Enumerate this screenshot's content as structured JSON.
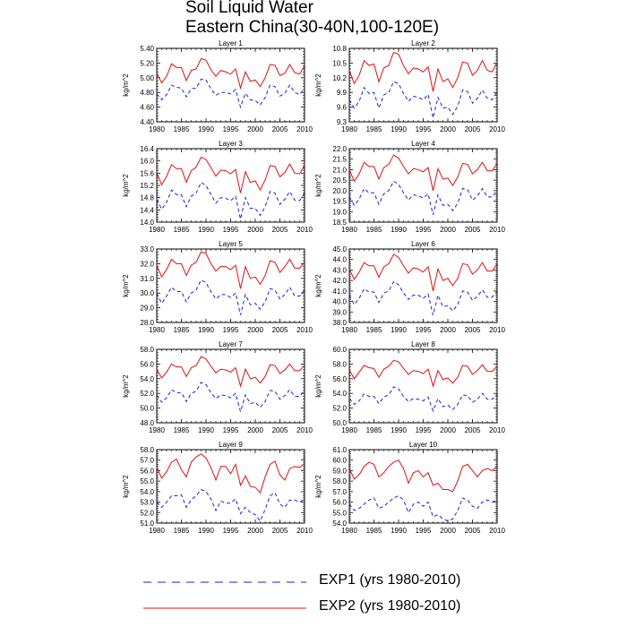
{
  "figure": {
    "title_line1": "Soil Liquid Water",
    "title_line2": "Eastern China(30-40N,100-120E)",
    "ylabel": "kg/m^2",
    "legend": [
      {
        "label": "EXP1 (yrs 1980-2010)",
        "color": "#1f1fd6",
        "style": "dashed"
      },
      {
        "label": "EXP2 (yrs 1980-2010)",
        "color": "#e01010",
        "style": "solid"
      }
    ]
  },
  "chart_data": [
    {
      "type": "line",
      "title": "Layer 1",
      "ylim": [
        4.4,
        5.4
      ],
      "yticks": [
        "4.40",
        "4.60",
        "4.80",
        "5.00",
        "5.20",
        "5.40"
      ],
      "xlim": [
        1980,
        2010
      ],
      "xticks": [
        "1980",
        "1985",
        "1990",
        "1995",
        "2000",
        "2005",
        "2010"
      ],
      "series": [
        {
          "name": "EXP1 (yrs 1980-2010)",
          "values": [
            4.78,
            4.7,
            4.77,
            4.9,
            4.87,
            4.86,
            4.74,
            4.85,
            4.86,
            4.98,
            4.97,
            4.85,
            4.76,
            4.8,
            4.8,
            4.78,
            4.84,
            4.6,
            4.79,
            4.7,
            4.69,
            4.63,
            4.73,
            4.9,
            4.88,
            4.75,
            4.79,
            4.9,
            4.8,
            4.77,
            4.86
          ]
        },
        {
          "name": "EXP2 (yrs 1980-2010)",
          "values": [
            5.06,
            4.93,
            5.02,
            5.19,
            5.14,
            5.14,
            4.96,
            5.1,
            5.12,
            5.26,
            5.24,
            5.11,
            5.02,
            5.1,
            5.08,
            5.05,
            5.12,
            4.86,
            5.08,
            4.95,
            4.97,
            4.88,
            5.0,
            5.18,
            5.17,
            5.03,
            5.06,
            5.18,
            5.07,
            5.05,
            5.16
          ]
        }
      ]
    },
    {
      "type": "line",
      "title": "Layer 2",
      "ylim": [
        9.3,
        10.8
      ],
      "yticks": [
        "9.3",
        "9.6",
        "9.9",
        "10.2",
        "10.5",
        "10.8"
      ],
      "xlim": [
        1980,
        2010
      ],
      "xticks": [
        "1980",
        "1985",
        "1990",
        "1995",
        "2000",
        "2005",
        "2010"
      ],
      "series": [
        {
          "name": "EXP1 (yrs 1980-2010)",
          "values": [
            9.75,
            9.58,
            9.72,
            10.0,
            9.88,
            9.9,
            9.58,
            9.85,
            9.9,
            10.12,
            10.08,
            9.88,
            9.72,
            9.82,
            9.8,
            9.75,
            9.86,
            9.38,
            9.8,
            9.58,
            9.6,
            9.45,
            9.62,
            9.95,
            9.92,
            9.68,
            9.78,
            9.95,
            9.78,
            9.75,
            9.92
          ]
        },
        {
          "name": "EXP2 (yrs 1980-2010)",
          "values": [
            10.35,
            10.08,
            10.25,
            10.55,
            10.45,
            10.48,
            10.12,
            10.4,
            10.45,
            10.72,
            10.68,
            10.45,
            10.28,
            10.4,
            10.38,
            10.32,
            10.42,
            9.92,
            10.38,
            10.12,
            10.18,
            10.0,
            10.2,
            10.52,
            10.5,
            10.25,
            10.35,
            10.55,
            10.35,
            10.32,
            10.52
          ]
        }
      ]
    },
    {
      "type": "line",
      "title": "Layer 3",
      "ylim": [
        14.0,
        16.4
      ],
      "yticks": [
        "14.0",
        "14.4",
        "14.8",
        "15.2",
        "15.6",
        "16.0",
        "16.4"
      ],
      "xlim": [
        1980,
        2010
      ],
      "xticks": [
        "1980",
        "1985",
        "1990",
        "1995",
        "2000",
        "2005",
        "2010"
      ],
      "series": [
        {
          "name": "EXP1 (yrs 1980-2010)",
          "values": [
            14.75,
            14.42,
            14.65,
            15.05,
            14.9,
            14.9,
            14.5,
            14.85,
            14.95,
            15.3,
            15.2,
            14.9,
            14.62,
            14.8,
            14.78,
            14.7,
            14.85,
            14.1,
            14.8,
            14.45,
            14.45,
            14.22,
            14.5,
            15.0,
            14.95,
            14.58,
            14.75,
            15.0,
            14.72,
            14.7,
            14.95
          ]
        },
        {
          "name": "EXP2 (yrs 1980-2010)",
          "values": [
            15.62,
            15.22,
            15.5,
            15.88,
            15.75,
            15.75,
            15.3,
            15.68,
            15.8,
            16.12,
            16.05,
            15.78,
            15.5,
            15.7,
            15.68,
            15.58,
            15.72,
            14.95,
            15.65,
            15.3,
            15.35,
            15.05,
            15.38,
            15.85,
            15.82,
            15.48,
            15.62,
            15.9,
            15.6,
            15.58,
            15.85
          ]
        }
      ]
    },
    {
      "type": "line",
      "title": "Layer 4",
      "ylim": [
        18.5,
        22.0
      ],
      "yticks": [
        "18.5",
        "19.0",
        "19.5",
        "20.0",
        "20.5",
        "21.0",
        "21.5",
        "22.0"
      ],
      "xlim": [
        1980,
        2010
      ],
      "xticks": [
        "1980",
        "1985",
        "1990",
        "1995",
        "2000",
        "2005",
        "2010"
      ],
      "series": [
        {
          "name": "EXP1 (yrs 1980-2010)",
          "values": [
            19.7,
            19.3,
            19.6,
            20.1,
            19.9,
            19.9,
            19.35,
            19.85,
            20.0,
            20.45,
            20.3,
            19.9,
            19.55,
            19.8,
            19.75,
            19.65,
            19.85,
            18.85,
            19.8,
            19.3,
            19.35,
            19.05,
            19.4,
            20.1,
            20.05,
            19.55,
            19.75,
            20.1,
            19.7,
            19.7,
            20.0
          ]
        },
        {
          "name": "EXP2 (yrs 1980-2010)",
          "values": [
            21.0,
            20.45,
            20.8,
            21.35,
            21.15,
            21.15,
            20.55,
            21.1,
            21.25,
            21.7,
            21.55,
            21.15,
            20.8,
            21.05,
            21.0,
            20.9,
            21.1,
            20.0,
            21.05,
            20.55,
            20.6,
            20.25,
            20.65,
            21.3,
            21.25,
            20.8,
            21.0,
            21.35,
            20.95,
            20.95,
            21.3
          ]
        }
      ]
    },
    {
      "type": "line",
      "title": "Layer 5",
      "ylim": [
        28.0,
        33.0
      ],
      "yticks": [
        "28.0",
        "29.0",
        "30.0",
        "31.0",
        "32.0",
        "33.0"
      ],
      "xlim": [
        1980,
        2010
      ],
      "xticks": [
        "1980",
        "1985",
        "1990",
        "1995",
        "2000",
        "2005",
        "2010"
      ],
      "series": [
        {
          "name": "EXP1 (yrs 1980-2010)",
          "values": [
            30.0,
            29.3,
            29.8,
            30.4,
            30.1,
            30.1,
            29.4,
            30.0,
            30.2,
            30.9,
            30.7,
            30.1,
            29.6,
            29.9,
            29.9,
            29.7,
            30.0,
            28.5,
            29.9,
            29.2,
            29.3,
            28.9,
            29.4,
            30.3,
            30.2,
            29.6,
            29.9,
            30.4,
            29.8,
            29.8,
            30.2
          ]
        },
        {
          "name": "EXP2 (yrs 1980-2010)",
          "values": [
            31.9,
            31.1,
            31.6,
            32.3,
            32.0,
            32.0,
            31.2,
            31.9,
            32.1,
            32.8,
            32.7,
            32.0,
            31.5,
            31.8,
            31.8,
            31.6,
            31.9,
            30.3,
            31.8,
            31.0,
            31.1,
            30.6,
            31.2,
            32.2,
            32.1,
            31.4,
            31.8,
            32.3,
            31.7,
            31.7,
            32.1
          ]
        }
      ]
    },
    {
      "type": "line",
      "title": "Layer 6",
      "ylim": [
        38.0,
        45.0
      ],
      "yticks": [
        "38.0",
        "39.0",
        "40.0",
        "41.0",
        "42.0",
        "43.0",
        "44.0",
        "45.0"
      ],
      "xlim": [
        1980,
        2010
      ],
      "xticks": [
        "1980",
        "1985",
        "1990",
        "1995",
        "2000",
        "2005",
        "2010"
      ],
      "series": [
        {
          "name": "EXP1 (yrs 1980-2010)",
          "values": [
            40.6,
            39.7,
            40.3,
            41.2,
            40.9,
            40.9,
            39.9,
            40.8,
            41.0,
            41.9,
            41.6,
            40.8,
            40.2,
            40.6,
            40.6,
            40.3,
            40.7,
            38.7,
            40.6,
            39.5,
            39.6,
            39.1,
            39.7,
            41.0,
            40.9,
            40.1,
            40.5,
            41.1,
            40.4,
            40.4,
            41.0
          ]
        },
        {
          "name": "EXP2 (yrs 1980-2010)",
          "values": [
            43.1,
            42.1,
            42.8,
            43.7,
            43.4,
            43.4,
            42.3,
            43.3,
            43.6,
            44.5,
            44.2,
            43.4,
            42.7,
            43.2,
            43.1,
            42.8,
            43.3,
            41.0,
            43.1,
            42.0,
            42.2,
            41.5,
            42.2,
            43.6,
            43.5,
            42.6,
            43.0,
            43.7,
            42.9,
            42.9,
            43.6
          ]
        }
      ]
    },
    {
      "type": "line",
      "title": "Layer 7",
      "ylim": [
        48.0,
        58.0
      ],
      "yticks": [
        "48.0",
        "50.0",
        "52.0",
        "54.0",
        "56.0",
        "58.0"
      ],
      "xlim": [
        1980,
        2010
      ],
      "xticks": [
        "1980",
        "1985",
        "1990",
        "1995",
        "2000",
        "2005",
        "2010"
      ],
      "series": [
        {
          "name": "EXP1 (yrs 1980-2010)",
          "values": [
            51.8,
            50.8,
            51.4,
            52.5,
            52.1,
            52.1,
            50.9,
            52.0,
            52.3,
            53.5,
            53.2,
            52.1,
            51.3,
            51.8,
            51.7,
            51.4,
            52.0,
            49.5,
            51.8,
            50.6,
            50.8,
            50.1,
            50.9,
            52.4,
            52.3,
            51.2,
            51.7,
            52.5,
            51.6,
            51.6,
            52.4
          ]
        },
        {
          "name": "EXP2 (yrs 1980-2010)",
          "values": [
            55.3,
            54.1,
            54.9,
            56.0,
            55.6,
            55.6,
            54.3,
            55.5,
            55.8,
            57.0,
            56.7,
            55.7,
            54.8,
            55.3,
            55.2,
            54.9,
            55.5,
            53.0,
            55.3,
            54.0,
            54.2,
            53.4,
            54.3,
            55.9,
            55.8,
            54.7,
            55.2,
            56.0,
            55.1,
            55.1,
            55.8
          ]
        }
      ]
    },
    {
      "type": "line",
      "title": "Layer 8",
      "ylim": [
        50.0,
        60.0
      ],
      "yticks": [
        "50.0",
        "52.0",
        "54.0",
        "56.0",
        "58.0",
        "60.0"
      ],
      "xlim": [
        1980,
        2010
      ],
      "xticks": [
        "1980",
        "1985",
        "1990",
        "1995",
        "2000",
        "2005",
        "2010"
      ],
      "series": [
        {
          "name": "EXP1 (yrs 1980-2010)",
          "values": [
            53.3,
            52.5,
            53.0,
            53.9,
            53.6,
            53.6,
            52.6,
            53.5,
            53.8,
            54.9,
            54.6,
            53.6,
            52.9,
            53.3,
            53.2,
            53.0,
            53.5,
            51.6,
            53.3,
            52.2,
            52.4,
            51.8,
            52.5,
            53.8,
            53.7,
            52.8,
            53.2,
            54.0,
            53.2,
            53.2,
            53.9
          ]
        },
        {
          "name": "EXP2 (yrs 1980-2010)",
          "values": [
            57.2,
            56.0,
            56.9,
            57.8,
            57.5,
            57.4,
            56.2,
            57.3,
            57.7,
            58.5,
            58.3,
            57.4,
            56.6,
            57.1,
            57.0,
            56.7,
            57.3,
            55.0,
            57.1,
            55.9,
            56.1,
            55.4,
            56.2,
            57.8,
            57.7,
            56.6,
            57.1,
            57.9,
            57.0,
            57.0,
            57.7
          ]
        }
      ]
    },
    {
      "type": "line",
      "title": "Layer 9",
      "ylim": [
        51.0,
        58.0
      ],
      "yticks": [
        "51.0",
        "52.0",
        "53.0",
        "54.0",
        "55.0",
        "56.0",
        "57.0",
        "58.0"
      ],
      "xlim": [
        1980,
        2010
      ],
      "xticks": [
        "1980",
        "1985",
        "1990",
        "1995",
        "2000",
        "2005",
        "2010"
      ],
      "series": [
        {
          "name": "EXP1 (yrs 1980-2010)",
          "values": [
            53.0,
            52.5,
            53.0,
            53.6,
            53.6,
            53.7,
            52.5,
            53.2,
            53.6,
            54.2,
            54.0,
            53.3,
            52.2,
            53.1,
            52.9,
            52.9,
            53.3,
            51.9,
            52.5,
            52.0,
            51.8,
            51.2,
            52.3,
            53.6,
            53.9,
            52.8,
            52.5,
            53.2,
            53.2,
            53.0,
            53.3
          ]
        },
        {
          "name": "EXP2 (yrs 1980-2010)",
          "values": [
            56.3,
            55.3,
            55.9,
            56.8,
            57.1,
            56.1,
            55.4,
            56.8,
            57.3,
            57.6,
            57.2,
            56.3,
            55.1,
            56.4,
            56.4,
            55.7,
            56.6,
            54.6,
            55.5,
            54.5,
            54.4,
            53.9,
            55.4,
            56.6,
            56.9,
            55.6,
            55.1,
            56.2,
            56.4,
            56.3,
            56.7
          ]
        }
      ]
    },
    {
      "type": "line",
      "title": "Layer 10",
      "ylim": [
        54.0,
        61.0
      ],
      "yticks": [
        "54.0",
        "55.0",
        "56.0",
        "57.0",
        "58.0",
        "59.0",
        "60.0",
        "61.0"
      ],
      "xlim": [
        1980,
        2010
      ],
      "xticks": [
        "1980",
        "1985",
        "1990",
        "1995",
        "2000",
        "2005",
        "2010"
      ],
      "series": [
        {
          "name": "EXP1 (yrs 1980-2010)",
          "values": [
            55.8,
            55.2,
            55.4,
            55.8,
            56.2,
            56.4,
            55.4,
            55.6,
            56.0,
            56.4,
            56.6,
            56.2,
            55.0,
            55.8,
            56.0,
            55.6,
            56.0,
            54.6,
            54.8,
            54.4,
            54.2,
            54.4,
            55.2,
            56.4,
            56.2,
            55.6,
            55.4,
            56.0,
            56.2,
            56.0,
            56.2
          ]
        },
        {
          "name": "EXP2 (yrs 1980-2010)",
          "values": [
            59.2,
            58.2,
            58.6,
            59.4,
            59.8,
            59.6,
            58.4,
            58.8,
            59.4,
            59.8,
            60.0,
            59.2,
            57.8,
            58.8,
            59.0,
            58.4,
            58.8,
            57.6,
            57.8,
            57.2,
            57.2,
            57.0,
            58.0,
            59.4,
            59.6,
            59.0,
            58.4,
            59.0,
            59.2,
            59.0,
            59.4
          ]
        }
      ]
    }
  ]
}
